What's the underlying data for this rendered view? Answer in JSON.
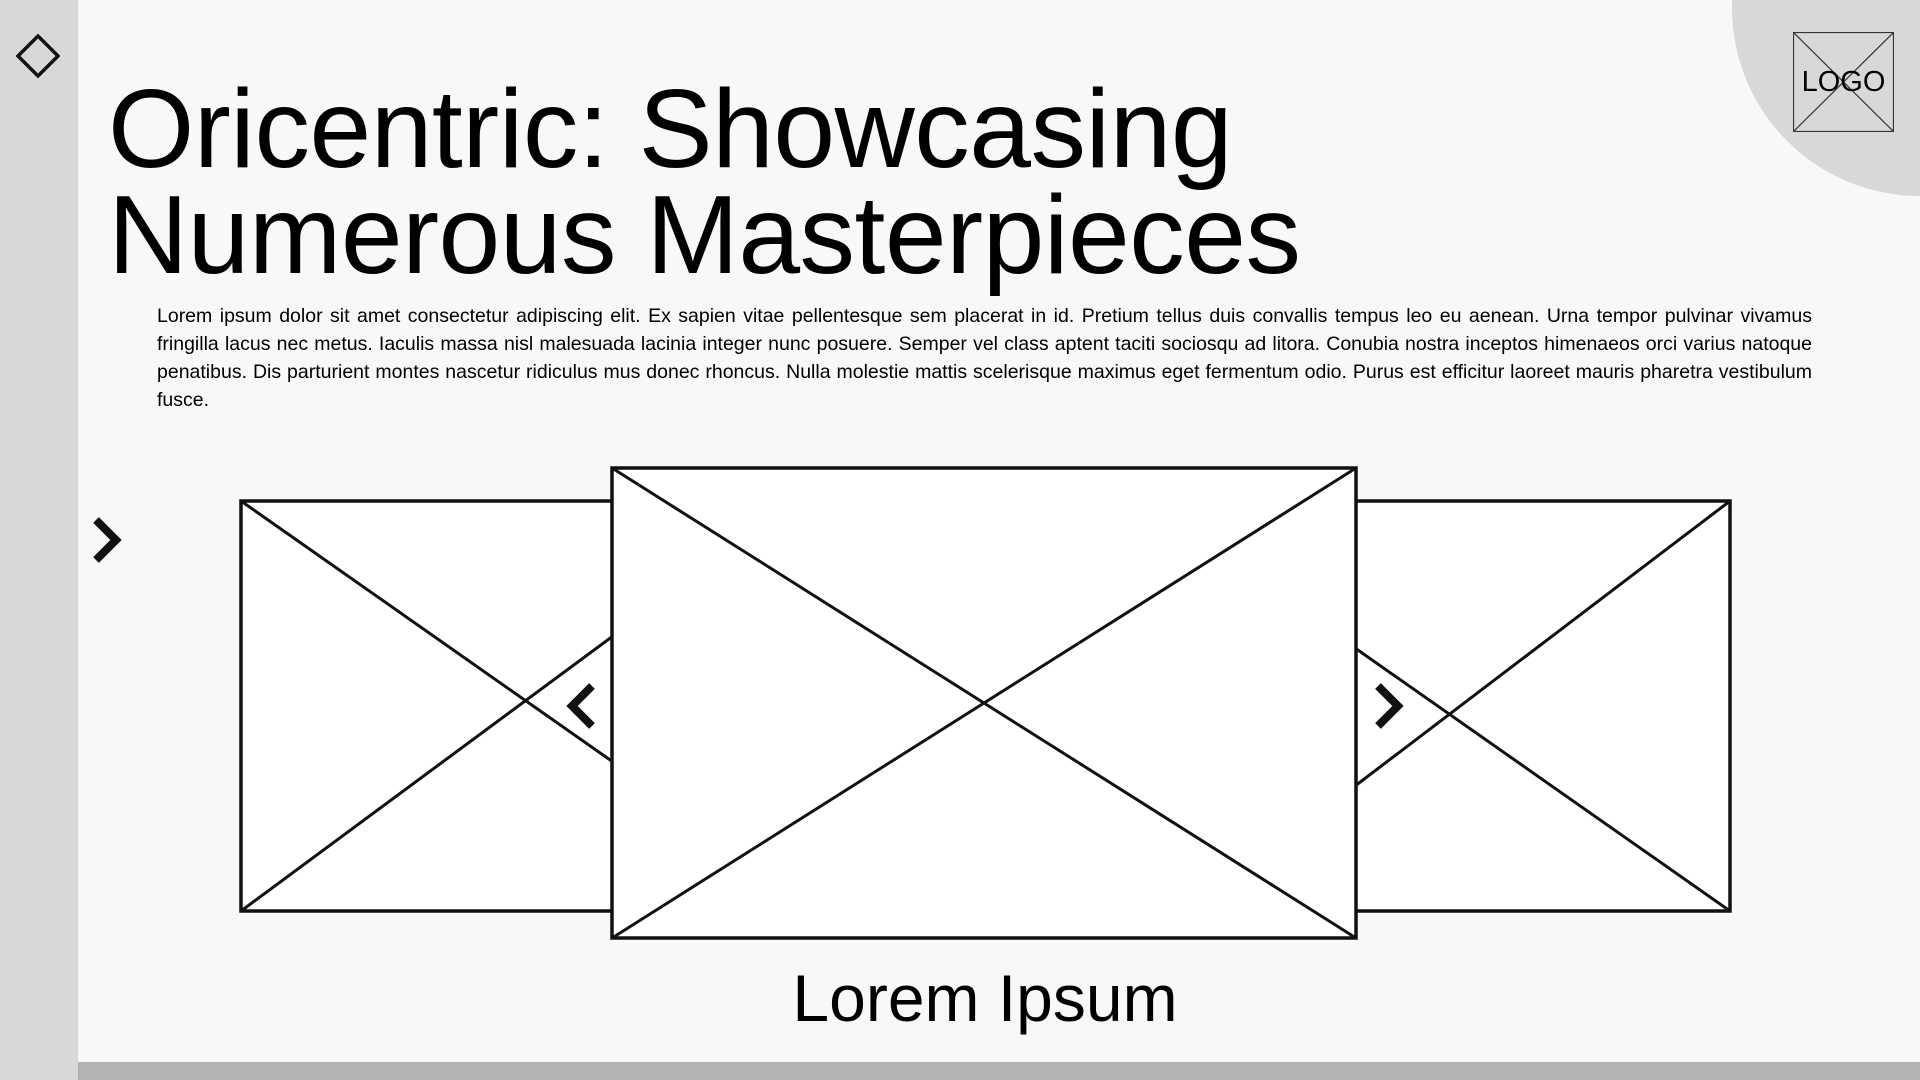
{
  "header": {
    "title": "Oricentric: Showcasing Numerous Masterpieces",
    "logo_label": "LOGO"
  },
  "main": {
    "body": "Lorem ipsum dolor sit amet consectetur adipiscing elit. Ex sapien vitae pellentesque sem placerat in id. Pretium tellus duis convallis tempus leo eu aenean. Urna tempor pulvinar vivamus fringilla lacus nec metus. Iaculis massa nisl malesuada lacinia integer nunc posuere. Semper vel class aptent taciti sociosqu ad litora. Conubia nostra inceptos himenaeos orci varius natoque penatibus. Dis parturient montes nascetur ridiculus mus donec rhoncus. Nulla molestie mattis scelerisque maximus eget fermentum odio. Purus est efficitur laoreet mauris pharetra vestibulum fusce.",
    "carousel_caption": "Lorem Ipsum"
  },
  "icons": {
    "sidebar_icon": "diamond-icon",
    "nav_icon": "chevron-right-icon",
    "prev_icon": "chevron-left-icon",
    "next_icon": "chevron-right-icon",
    "image_placeholder": "image-placeholder-icon"
  },
  "colors": {
    "background": "#f8f8f8",
    "sidebar": "#d8d8d8",
    "bottom_bar": "#b3b3b3",
    "stroke": "#111111"
  }
}
